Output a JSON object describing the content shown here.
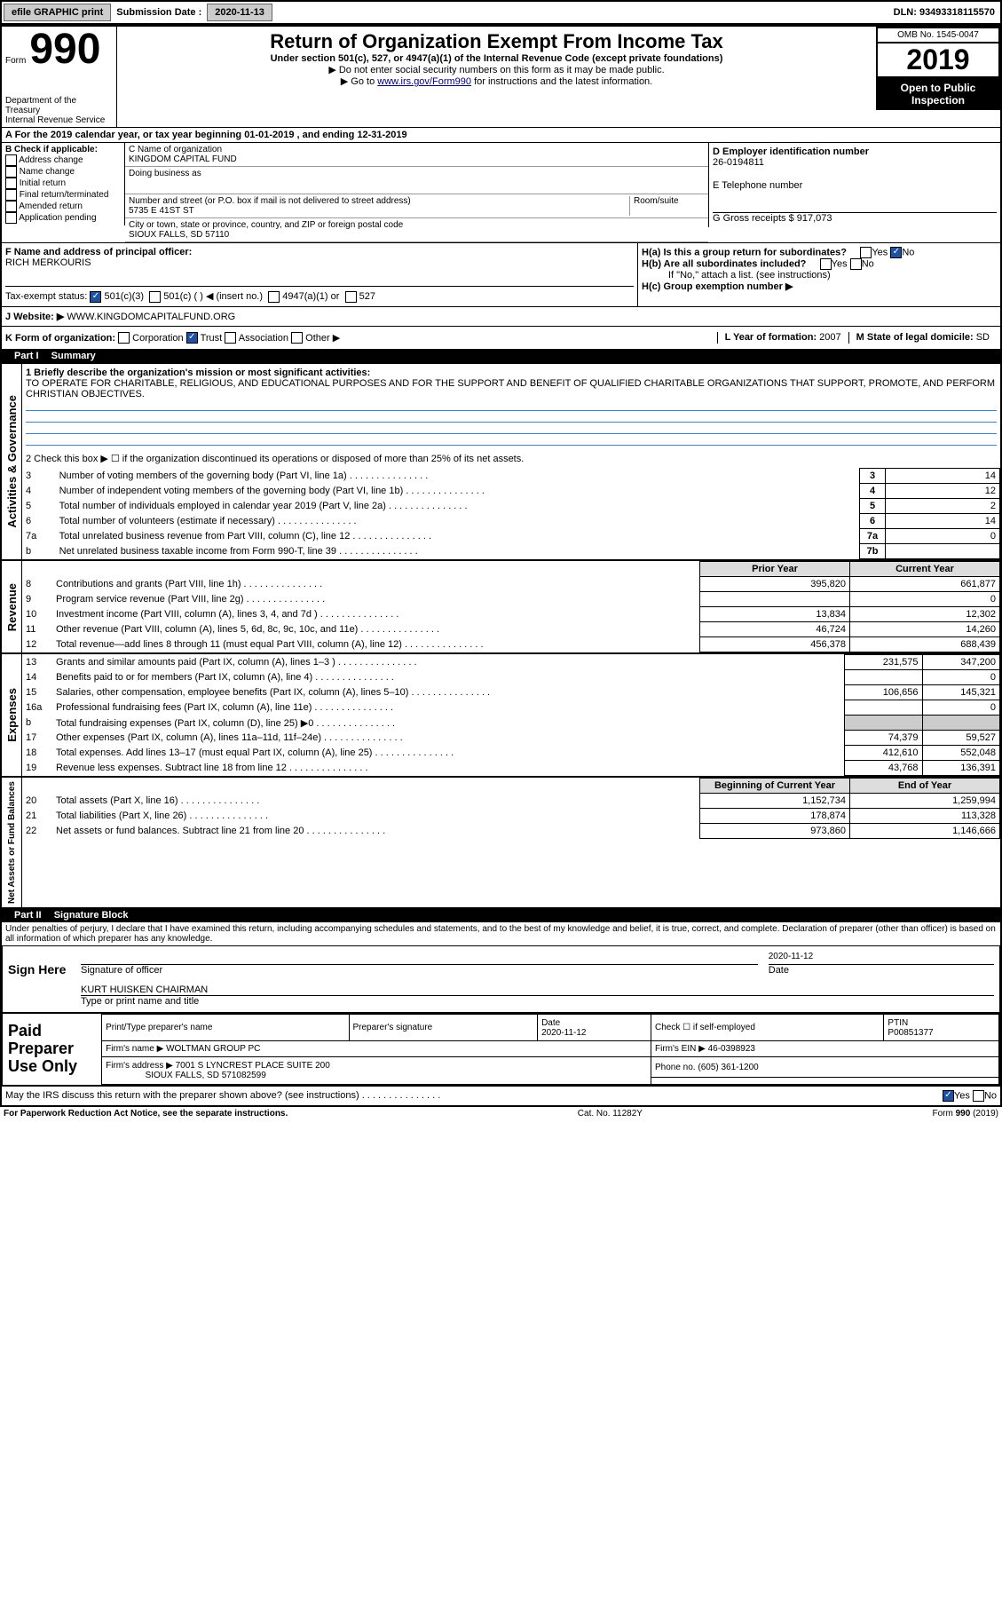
{
  "headerBar": {
    "efile": "efile GRAPHIC print",
    "subDateLabel": "Submission Date : ",
    "subDate": "2020-11-13",
    "dln": "DLN: 93493318115570"
  },
  "formHeader": {
    "formWord": "Form",
    "formNum": "990",
    "dept1": "Department of the Treasury",
    "dept2": "Internal Revenue Service",
    "title": "Return of Organization Exempt From Income Tax",
    "sub1": "Under section 501(c), 527, or 4947(a)(1) of the Internal Revenue Code (except private foundations)",
    "sub2": "▶ Do not enter social security numbers on this form as it may be made public.",
    "sub3": "▶ Go to www.irs.gov/Form990 for instructions and the latest information.",
    "link": "www.irs.gov/Form990",
    "omb": "OMB No. 1545-0047",
    "year": "2019",
    "open": "Open to Public Inspection"
  },
  "periodLine": "A For the 2019 calendar year, or tax year beginning 01-01-2019    , and ending 12-31-2019",
  "checkB": {
    "label": "B Check if applicable:",
    "opts": [
      "Address change",
      "Name change",
      "Initial return",
      "Final return/terminated",
      "Amended return",
      "Application pending"
    ]
  },
  "boxC": {
    "nameLabel": "C Name of organization",
    "name": "KINGDOM CAPITAL FUND",
    "dbaLabel": "Doing business as",
    "addrLabel": "Number and street (or P.O. box if mail is not delivered to street address)",
    "roomLabel": "Room/suite",
    "addr": "5735 E 41ST ST",
    "cityLabel": "City or town, state or province, country, and ZIP or foreign postal code",
    "city": "SIOUX FALLS, SD  57110"
  },
  "boxD": {
    "label": "D Employer identification number",
    "value": "26-0194811"
  },
  "boxE": {
    "label": "E Telephone number",
    "value": ""
  },
  "boxG": {
    "label": "G Gross receipts $ ",
    "value": "917,073"
  },
  "boxF": {
    "label": "F  Name and address of principal officer:",
    "value": "RICH MERKOURIS"
  },
  "boxH": {
    "a": "H(a)  Is this a group return for subordinates?",
    "aNo": "No",
    "aYes": "Yes",
    "b": "H(b)  Are all subordinates included?",
    "bNote": "If \"No,\" attach a list. (see instructions)",
    "c": "H(c)  Group exemption number ▶"
  },
  "taxExempt": {
    "label": "Tax-exempt status:",
    "v501c3": "501(c)(3)",
    "v501c": "501(c) (  ) ◀ (insert no.)",
    "v4947": "4947(a)(1) or",
    "v527": "527"
  },
  "websiteJ": {
    "label": "J Website: ▶",
    "value": "WWW.KINGDOMCAPITALFUND.ORG"
  },
  "formOrg": {
    "label": "K Form of organization:",
    "opts": [
      "Corporation",
      "Trust",
      "Association",
      "Other ▶"
    ],
    "checked": "Trust"
  },
  "yearL": {
    "label": "L Year of formation: ",
    "value": "2007"
  },
  "stateM": {
    "label": "M State of legal domicile: ",
    "value": "SD"
  },
  "part1": {
    "label": "Part I",
    "title": "Summary"
  },
  "mission": {
    "label": "1  Briefly describe the organization's mission or most significant activities:",
    "text": "TO OPERATE FOR CHARITABLE, RELIGIOUS, AND EDUCATIONAL PURPOSES AND FOR THE SUPPORT AND BENEFIT OF QUALIFIED CHARITABLE ORGANIZATIONS THAT SUPPORT, PROMOTE, AND PERFORM CHRISTIAN OBJECTIVES."
  },
  "line2": "2  Check this box ▶ ☐  if the organization discontinued its operations or disposed of more than 25% of its net assets.",
  "governance": {
    "section": "Activities & Governance",
    "rows": [
      {
        "n": "3",
        "t": "Number of voting members of the governing body (Part VI, line 1a)",
        "box": "3",
        "v": "14"
      },
      {
        "n": "4",
        "t": "Number of independent voting members of the governing body (Part VI, line 1b)",
        "box": "4",
        "v": "12"
      },
      {
        "n": "5",
        "t": "Total number of individuals employed in calendar year 2019 (Part V, line 2a)",
        "box": "5",
        "v": "2"
      },
      {
        "n": "6",
        "t": "Total number of volunteers (estimate if necessary)",
        "box": "6",
        "v": "14"
      },
      {
        "n": "7a",
        "t": "Total unrelated business revenue from Part VIII, column (C), line 12",
        "box": "7a",
        "v": "0"
      },
      {
        "n": "b",
        "t": "Net unrelated business taxable income from Form 990-T, line 39",
        "box": "7b",
        "v": ""
      }
    ]
  },
  "amountHdr": {
    "py": "Prior Year",
    "cy": "Current Year"
  },
  "revenue": {
    "section": "Revenue",
    "rows": [
      {
        "n": "8",
        "t": "Contributions and grants (Part VIII, line 1h)",
        "py": "395,820",
        "cy": "661,877"
      },
      {
        "n": "9",
        "t": "Program service revenue (Part VIII, line 2g)",
        "py": "",
        "cy": "0"
      },
      {
        "n": "10",
        "t": "Investment income (Part VIII, column (A), lines 3, 4, and 7d )",
        "py": "13,834",
        "cy": "12,302"
      },
      {
        "n": "11",
        "t": "Other revenue (Part VIII, column (A), lines 5, 6d, 8c, 9c, 10c, and 11e)",
        "py": "46,724",
        "cy": "14,260"
      },
      {
        "n": "12",
        "t": "Total revenue—add lines 8 through 11 (must equal Part VIII, column (A), line 12)",
        "py": "456,378",
        "cy": "688,439"
      }
    ]
  },
  "expenses": {
    "section": "Expenses",
    "rows": [
      {
        "n": "13",
        "t": "Grants and similar amounts paid (Part IX, column (A), lines 1–3 )",
        "py": "231,575",
        "cy": "347,200"
      },
      {
        "n": "14",
        "t": "Benefits paid to or for members (Part IX, column (A), line 4)",
        "py": "",
        "cy": "0"
      },
      {
        "n": "15",
        "t": "Salaries, other compensation, employee benefits (Part IX, column (A), lines 5–10)",
        "py": "106,656",
        "cy": "145,321"
      },
      {
        "n": "16a",
        "t": "Professional fundraising fees (Part IX, column (A), line 11e)",
        "py": "",
        "cy": "0"
      },
      {
        "n": "b",
        "t": "Total fundraising expenses (Part IX, column (D), line 25) ▶0",
        "py": "shade",
        "cy": "shade"
      },
      {
        "n": "17",
        "t": "Other expenses (Part IX, column (A), lines 11a–11d, 11f–24e)",
        "py": "74,379",
        "cy": "59,527"
      },
      {
        "n": "18",
        "t": "Total expenses. Add lines 13–17 (must equal Part IX, column (A), line 25)",
        "py": "412,610",
        "cy": "552,048"
      },
      {
        "n": "19",
        "t": "Revenue less expenses. Subtract line 18 from line 12",
        "py": "43,768",
        "cy": "136,391"
      }
    ]
  },
  "netHdr": {
    "py": "Beginning of Current Year",
    "cy": "End of Year"
  },
  "net": {
    "section": "Net Assets or Fund Balances",
    "rows": [
      {
        "n": "20",
        "t": "Total assets (Part X, line 16)",
        "py": "1,152,734",
        "cy": "1,259,994"
      },
      {
        "n": "21",
        "t": "Total liabilities (Part X, line 26)",
        "py": "178,874",
        "cy": "113,328"
      },
      {
        "n": "22",
        "t": "Net assets or fund balances. Subtract line 21 from line 20",
        "py": "973,860",
        "cy": "1,146,666"
      }
    ]
  },
  "part2": {
    "label": "Part II",
    "title": "Signature Block"
  },
  "penalties": "Under penalties of perjury, I declare that I have examined this return, including accompanying schedules and statements, and to the best of my knowledge and belief, it is true, correct, and complete. Declaration of preparer (other than officer) is based on all information of which preparer has any knowledge.",
  "sign": {
    "here": "Sign Here",
    "sigOfficer": "Signature of officer",
    "date": "Date",
    "dateVal": "2020-11-12",
    "typed": "KURT HUISKEN  CHAIRMAN",
    "typedLabel": "Type or print name and title"
  },
  "paid": {
    "label": "Paid Preparer Use Only",
    "prepName": "Print/Type preparer's name",
    "prepSig": "Preparer's signature",
    "dateLabel": "Date",
    "dateVal": "2020-11-12",
    "chkLabel": "Check ☐ if self-employed",
    "ptinLabel": "PTIN",
    "ptin": "P00851377",
    "firmNameLabel": "Firm's name   ▶",
    "firmName": "WOLTMAN GROUP PC",
    "firmEinLabel": "Firm's EIN ▶",
    "firmEin": "46-0398923",
    "firmAddrLabel": "Firm's address ▶",
    "firmAddr1": "7001 S LYNCREST PLACE SUITE 200",
    "firmAddr2": "SIOUX FALLS, SD  571082599",
    "phoneLabel": "Phone no. ",
    "phone": "(605) 361-1200"
  },
  "discuss": {
    "q": "May the IRS discuss this return with the preparer shown above? (see instructions)",
    "yes": "Yes",
    "no": "No"
  },
  "footer": {
    "pra": "For Paperwork Reduction Act Notice, see the separate instructions.",
    "cat": "Cat. No. 11282Y",
    "form": "Form 990 (2019)"
  }
}
